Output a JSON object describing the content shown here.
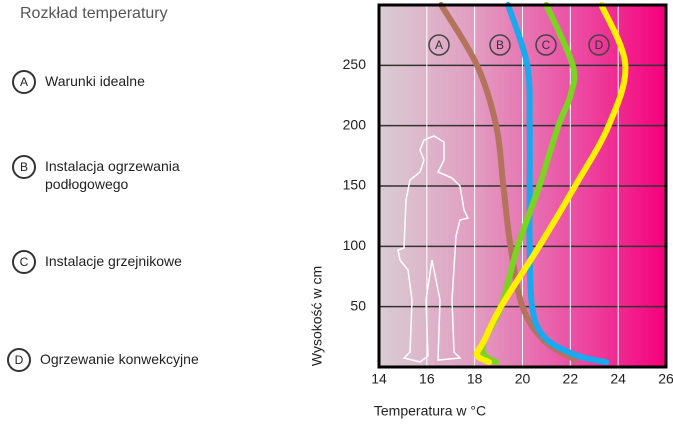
{
  "chart_data": {
    "type": "line",
    "title": "Rozkład temperatury",
    "x_label": "Temperatura w °C",
    "y_label": "Wysokość w cm",
    "xlim": [
      14,
      26
    ],
    "xticks": [
      14,
      16,
      18,
      20,
      22,
      24,
      26
    ],
    "ylim": [
      0,
      300
    ],
    "yticks": [
      50,
      100,
      150,
      200,
      250
    ],
    "grid": true,
    "series": [
      {
        "name": "Warunki idealne",
        "marker": "A",
        "color": "#b3735c",
        "x": [
          16.6,
          18.1,
          18.9,
          19.2,
          19.5,
          20.0,
          20.9,
          22.2
        ],
        "values": [
          300,
          250,
          200,
          150,
          100,
          50,
          22,
          6
        ]
      },
      {
        "name": "Instalacja ogrzewania podłogowego",
        "marker": "B",
        "color": "#1aa8ee",
        "x": [
          19.4,
          20.2,
          20.3,
          20.3,
          20.3,
          20.4,
          20.9,
          22.2,
          23.5
        ],
        "values": [
          300,
          250,
          200,
          150,
          100,
          50,
          25,
          10,
          4
        ]
      },
      {
        "name": "Instalacje grzejnikowe",
        "marker": "C",
        "color": "#7dd321",
        "x": [
          21.0,
          22.1,
          22.0,
          21.5,
          20.7,
          19.8,
          19.1,
          18.4,
          18.4,
          18.9
        ],
        "values": [
          300,
          250,
          225,
          200,
          150,
          100,
          50,
          22,
          10,
          4
        ]
      },
      {
        "name": "Ogrzewanie konwekcyjne",
        "marker": "D",
        "color": "#fff000",
        "x": [
          23.3,
          24.3,
          23.6,
          22.2,
          20.7,
          19.1,
          18.4,
          18.1,
          18.6
        ],
        "values": [
          300,
          250,
          200,
          150,
          100,
          50,
          22,
          10,
          4
        ]
      }
    ]
  }
}
